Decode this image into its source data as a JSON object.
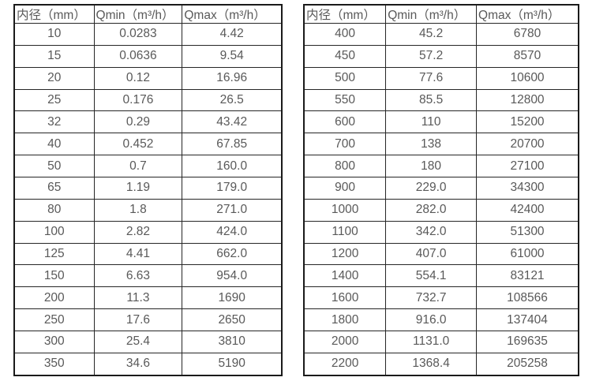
{
  "colors": {
    "background": "#ffffff",
    "text": "#595959",
    "grid_border": "#262626",
    "outer_border": "#1a1a1a"
  },
  "tables": [
    {
      "name": "flow-rate-table-small-diameters",
      "headers": [
        "内径（mm）",
        "Qmin（m³/h）",
        "Qmax（m³/h）"
      ],
      "rows": [
        [
          "10",
          "0.0283",
          "4.42"
        ],
        [
          "15",
          "0.0636",
          "9.54"
        ],
        [
          "20",
          "0.12",
          "16.96"
        ],
        [
          "25",
          "0.176",
          "26.5"
        ],
        [
          "32",
          "0.29",
          "43.42"
        ],
        [
          "40",
          "0.452",
          "67.85"
        ],
        [
          "50",
          "0.7",
          "160.0"
        ],
        [
          "65",
          "1.19",
          "179.0"
        ],
        [
          "80",
          "1.8",
          "271.0"
        ],
        [
          "100",
          "2.82",
          "424.0"
        ],
        [
          "125",
          "4.41",
          "662.0"
        ],
        [
          "150",
          "6.63",
          "954.0"
        ],
        [
          "200",
          "11.3",
          "1690"
        ],
        [
          "250",
          "17.6",
          "2650"
        ],
        [
          "300",
          "25.4",
          "3810"
        ],
        [
          "350",
          "34.6",
          "5190"
        ]
      ]
    },
    {
      "name": "flow-rate-table-large-diameters",
      "headers": [
        "内径（mm）",
        "Qmin（m³/h）",
        "Qmax（m³/h）"
      ],
      "rows": [
        [
          "400",
          "45.2",
          "6780"
        ],
        [
          "450",
          "57.2",
          "8570"
        ],
        [
          "500",
          "77.6",
          "10600"
        ],
        [
          "550",
          "85.5",
          "12800"
        ],
        [
          "600",
          "110",
          "15200"
        ],
        [
          "700",
          "138",
          "20700"
        ],
        [
          "800",
          "180",
          "27100"
        ],
        [
          "900",
          "229.0",
          "34300"
        ],
        [
          "1000",
          "282.0",
          "42400"
        ],
        [
          "1100",
          "342.0",
          "51300"
        ],
        [
          "1200",
          "407.0",
          "61000"
        ],
        [
          "1400",
          "554.1",
          "83121"
        ],
        [
          "1600",
          "732.7",
          "108566"
        ],
        [
          "1800",
          "916.0",
          "137404"
        ],
        [
          "2000",
          "1131.0",
          "169635"
        ],
        [
          "2200",
          "1368.4",
          "205258"
        ]
      ]
    }
  ]
}
